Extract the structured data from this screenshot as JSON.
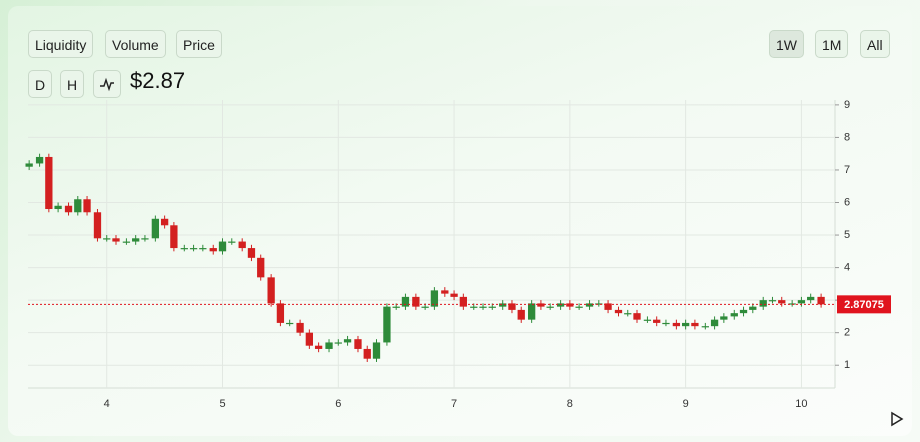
{
  "controls": {
    "metrics": [
      "Liquidity",
      "Volume",
      "Price"
    ],
    "ranges": [
      "1W",
      "1M",
      "All"
    ],
    "intervals": [
      "D",
      "H"
    ]
  },
  "price": "$2.87",
  "chart_data": {
    "type": "candlestick",
    "x": [
      3.33,
      3.42,
      3.5,
      3.58,
      3.67,
      3.75,
      3.83,
      3.92,
      4.0,
      4.08,
      4.17,
      4.25,
      4.33,
      4.42,
      4.5,
      4.58,
      4.67,
      4.75,
      4.83,
      4.92,
      5.0,
      5.08,
      5.17,
      5.25,
      5.33,
      5.42,
      5.5,
      5.58,
      5.67,
      5.75,
      5.83,
      5.92,
      6.0,
      6.08,
      6.17,
      6.25,
      6.33,
      6.42,
      6.5,
      6.58,
      6.67,
      6.75,
      6.83,
      6.92,
      7.0,
      7.08,
      7.17,
      7.25,
      7.33,
      7.42,
      7.5,
      7.58,
      7.67,
      7.75,
      7.83,
      7.92,
      8.0,
      8.08,
      8.17,
      8.25,
      8.33,
      8.42,
      8.5,
      8.58,
      8.67,
      8.75,
      8.83,
      8.92,
      9.0,
      9.08,
      9.17,
      9.25,
      9.33,
      9.42,
      9.5,
      9.58,
      9.67,
      9.75,
      9.83,
      9.92,
      10.0,
      10.08,
      10.17
    ],
    "open": [
      7.1,
      7.2,
      7.4,
      5.8,
      5.9,
      5.7,
      6.1,
      5.7,
      4.9,
      4.9,
      4.8,
      4.8,
      4.9,
      4.9,
      5.5,
      5.3,
      4.6,
      4.6,
      4.6,
      4.6,
      4.5,
      4.8,
      4.8,
      4.6,
      4.3,
      3.7,
      2.9,
      2.3,
      2.3,
      2.0,
      1.6,
      1.5,
      1.7,
      1.7,
      1.8,
      1.5,
      1.2,
      1.7,
      2.8,
      2.8,
      3.1,
      2.8,
      2.8,
      3.3,
      3.2,
      3.1,
      2.8,
      2.8,
      2.8,
      2.8,
      2.9,
      2.7,
      2.4,
      2.9,
      2.8,
      2.8,
      2.9,
      2.8,
      2.8,
      2.9,
      2.9,
      2.7,
      2.6,
      2.6,
      2.4,
      2.4,
      2.3,
      2.3,
      2.2,
      2.3,
      2.2,
      2.2,
      2.4,
      2.5,
      2.6,
      2.7,
      2.8,
      3.0,
      3.0,
      2.9,
      2.9,
      3.0,
      3.1
    ],
    "high": [
      7.3,
      7.5,
      7.5,
      6.0,
      6.0,
      6.2,
      6.2,
      5.8,
      5.0,
      5.0,
      4.9,
      5.0,
      5.0,
      5.6,
      5.6,
      5.4,
      4.7,
      4.7,
      4.7,
      4.7,
      4.9,
      4.9,
      4.9,
      4.7,
      4.4,
      3.8,
      3.0,
      2.4,
      2.4,
      2.1,
      1.7,
      1.8,
      1.8,
      1.9,
      1.9,
      1.6,
      1.8,
      2.9,
      2.9,
      3.2,
      3.2,
      2.9,
      3.4,
      3.4,
      3.3,
      3.2,
      2.9,
      2.9,
      2.9,
      3.0,
      3.0,
      2.8,
      3.0,
      3.0,
      2.9,
      3.0,
      3.0,
      2.9,
      3.0,
      3.0,
      3.0,
      2.8,
      2.7,
      2.7,
      2.5,
      2.5,
      2.4,
      2.4,
      2.4,
      2.4,
      2.3,
      2.5,
      2.6,
      2.7,
      2.8,
      2.9,
      3.1,
      3.1,
      3.1,
      3.0,
      3.1,
      3.2,
      3.2
    ],
    "low": [
      7.0,
      7.1,
      5.7,
      5.7,
      5.6,
      5.6,
      5.6,
      4.8,
      4.8,
      4.7,
      4.7,
      4.7,
      4.8,
      4.8,
      5.2,
      4.5,
      4.5,
      4.5,
      4.5,
      4.4,
      4.4,
      4.7,
      4.5,
      4.2,
      3.6,
      2.8,
      2.2,
      2.2,
      1.9,
      1.5,
      1.4,
      1.4,
      1.6,
      1.6,
      1.4,
      1.1,
      1.1,
      1.6,
      2.7,
      2.7,
      2.7,
      2.7,
      2.7,
      3.1,
      3.0,
      2.7,
      2.7,
      2.7,
      2.7,
      2.7,
      2.6,
      2.3,
      2.3,
      2.7,
      2.7,
      2.7,
      2.7,
      2.7,
      2.7,
      2.8,
      2.6,
      2.5,
      2.5,
      2.3,
      2.3,
      2.2,
      2.2,
      2.1,
      2.1,
      2.1,
      2.1,
      2.1,
      2.3,
      2.4,
      2.5,
      2.6,
      2.7,
      2.9,
      2.8,
      2.8,
      2.8,
      2.9,
      2.77
    ],
    "close": [
      7.2,
      7.4,
      5.8,
      5.9,
      5.7,
      6.1,
      5.7,
      4.9,
      4.9,
      4.8,
      4.8,
      4.9,
      4.9,
      5.5,
      5.3,
      4.6,
      4.6,
      4.6,
      4.6,
      4.5,
      4.8,
      4.8,
      4.6,
      4.3,
      3.7,
      2.9,
      2.3,
      2.3,
      2.0,
      1.6,
      1.5,
      1.7,
      1.7,
      1.8,
      1.5,
      1.2,
      1.7,
      2.8,
      2.8,
      3.1,
      2.8,
      2.8,
      3.3,
      3.2,
      3.1,
      2.8,
      2.8,
      2.8,
      2.8,
      2.9,
      2.7,
      2.4,
      2.9,
      2.8,
      2.8,
      2.9,
      2.8,
      2.8,
      2.9,
      2.9,
      2.7,
      2.6,
      2.6,
      2.4,
      2.4,
      2.3,
      2.3,
      2.2,
      2.3,
      2.2,
      2.2,
      2.4,
      2.5,
      2.6,
      2.7,
      2.8,
      3.0,
      3.0,
      2.9,
      2.9,
      3.0,
      3.1,
      2.87
    ],
    "last_price": 2.87075,
    "up_color": "#2e8b3a",
    "down_color": "#d32020",
    "last_price_color": "#e0141e",
    "xlim": [
      3.32,
      10.29
    ],
    "ylim": [
      0.3,
      9.15
    ],
    "xticks": [
      4,
      5,
      6,
      7,
      8,
      9,
      10
    ],
    "yticks": [
      1,
      2,
      3,
      4,
      5,
      6,
      7,
      8,
      9
    ],
    "grid": true
  }
}
